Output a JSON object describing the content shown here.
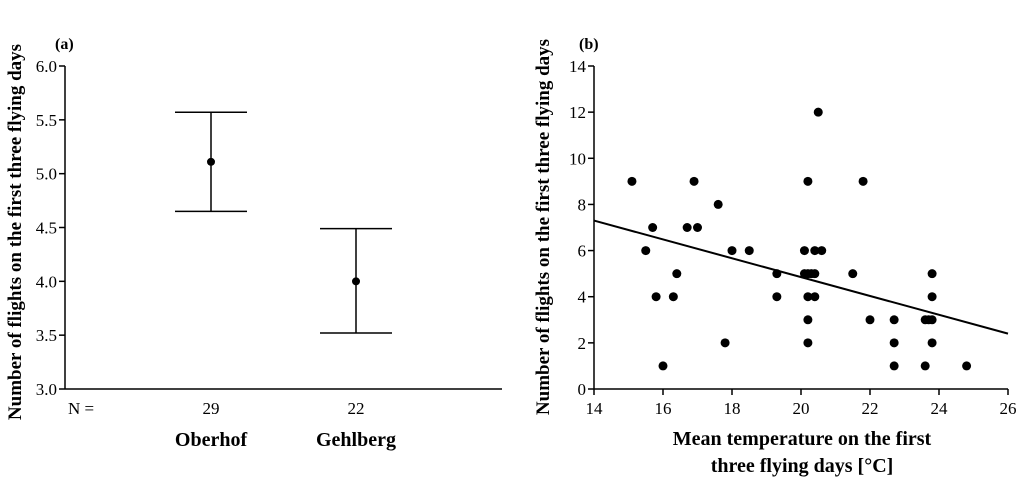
{
  "chart_data": [
    {
      "type": "errorbar",
      "panel_label": "(a)",
      "ylabel": "Number of flights on the first three flying days",
      "ylim": [
        3.0,
        6.0
      ],
      "yticks": [
        "3.0",
        "3.5",
        "4.0",
        "4.5",
        "5.0",
        "5.5",
        "6.0"
      ],
      "n_label": "N =",
      "categories": [
        "Oberhof",
        "Gehlberg"
      ],
      "n": [
        "29",
        "22"
      ],
      "means": [
        5.11,
        4.0
      ],
      "lower": [
        4.65,
        3.52
      ],
      "upper": [
        5.57,
        4.49
      ]
    },
    {
      "type": "scatter",
      "panel_label": "(b)",
      "ylabel": "Number of flights on the first three flying days",
      "xlabel_line1": "Mean temperature on the first",
      "xlabel_line2": "three flying days [°C]",
      "xlim": [
        14,
        26
      ],
      "ylim": [
        0,
        14
      ],
      "xticks": [
        "14",
        "16",
        "18",
        "20",
        "22",
        "24",
        "26"
      ],
      "yticks": [
        "0",
        "2",
        "4",
        "6",
        "8",
        "10",
        "12",
        "14"
      ],
      "points": [
        [
          15.1,
          9
        ],
        [
          15.5,
          6
        ],
        [
          15.7,
          7
        ],
        [
          15.8,
          4
        ],
        [
          16.0,
          1
        ],
        [
          16.3,
          4
        ],
        [
          16.4,
          5
        ],
        [
          16.7,
          7
        ],
        [
          16.9,
          9
        ],
        [
          17.0,
          7
        ],
        [
          17.6,
          8
        ],
        [
          17.8,
          2
        ],
        [
          18.0,
          6
        ],
        [
          18.5,
          6
        ],
        [
          19.3,
          5
        ],
        [
          19.3,
          4
        ],
        [
          20.1,
          6
        ],
        [
          20.1,
          5
        ],
        [
          20.2,
          5
        ],
        [
          20.2,
          9
        ],
        [
          20.2,
          4
        ],
        [
          20.2,
          3
        ],
        [
          20.2,
          2
        ],
        [
          20.3,
          5
        ],
        [
          20.4,
          6
        ],
        [
          20.4,
          5
        ],
        [
          20.4,
          4
        ],
        [
          20.5,
          12
        ],
        [
          20.6,
          6
        ],
        [
          21.5,
          5
        ],
        [
          21.8,
          9
        ],
        [
          22.0,
          3
        ],
        [
          22.7,
          3
        ],
        [
          22.7,
          2
        ],
        [
          22.7,
          1
        ],
        [
          23.6,
          3
        ],
        [
          23.6,
          1
        ],
        [
          23.7,
          3
        ],
        [
          23.8,
          5
        ],
        [
          23.8,
          4
        ],
        [
          23.8,
          3
        ],
        [
          23.8,
          2
        ],
        [
          24.8,
          1
        ]
      ],
      "trend": {
        "x": [
          14,
          26
        ],
        "y": [
          7.3,
          2.4
        ]
      }
    }
  ]
}
